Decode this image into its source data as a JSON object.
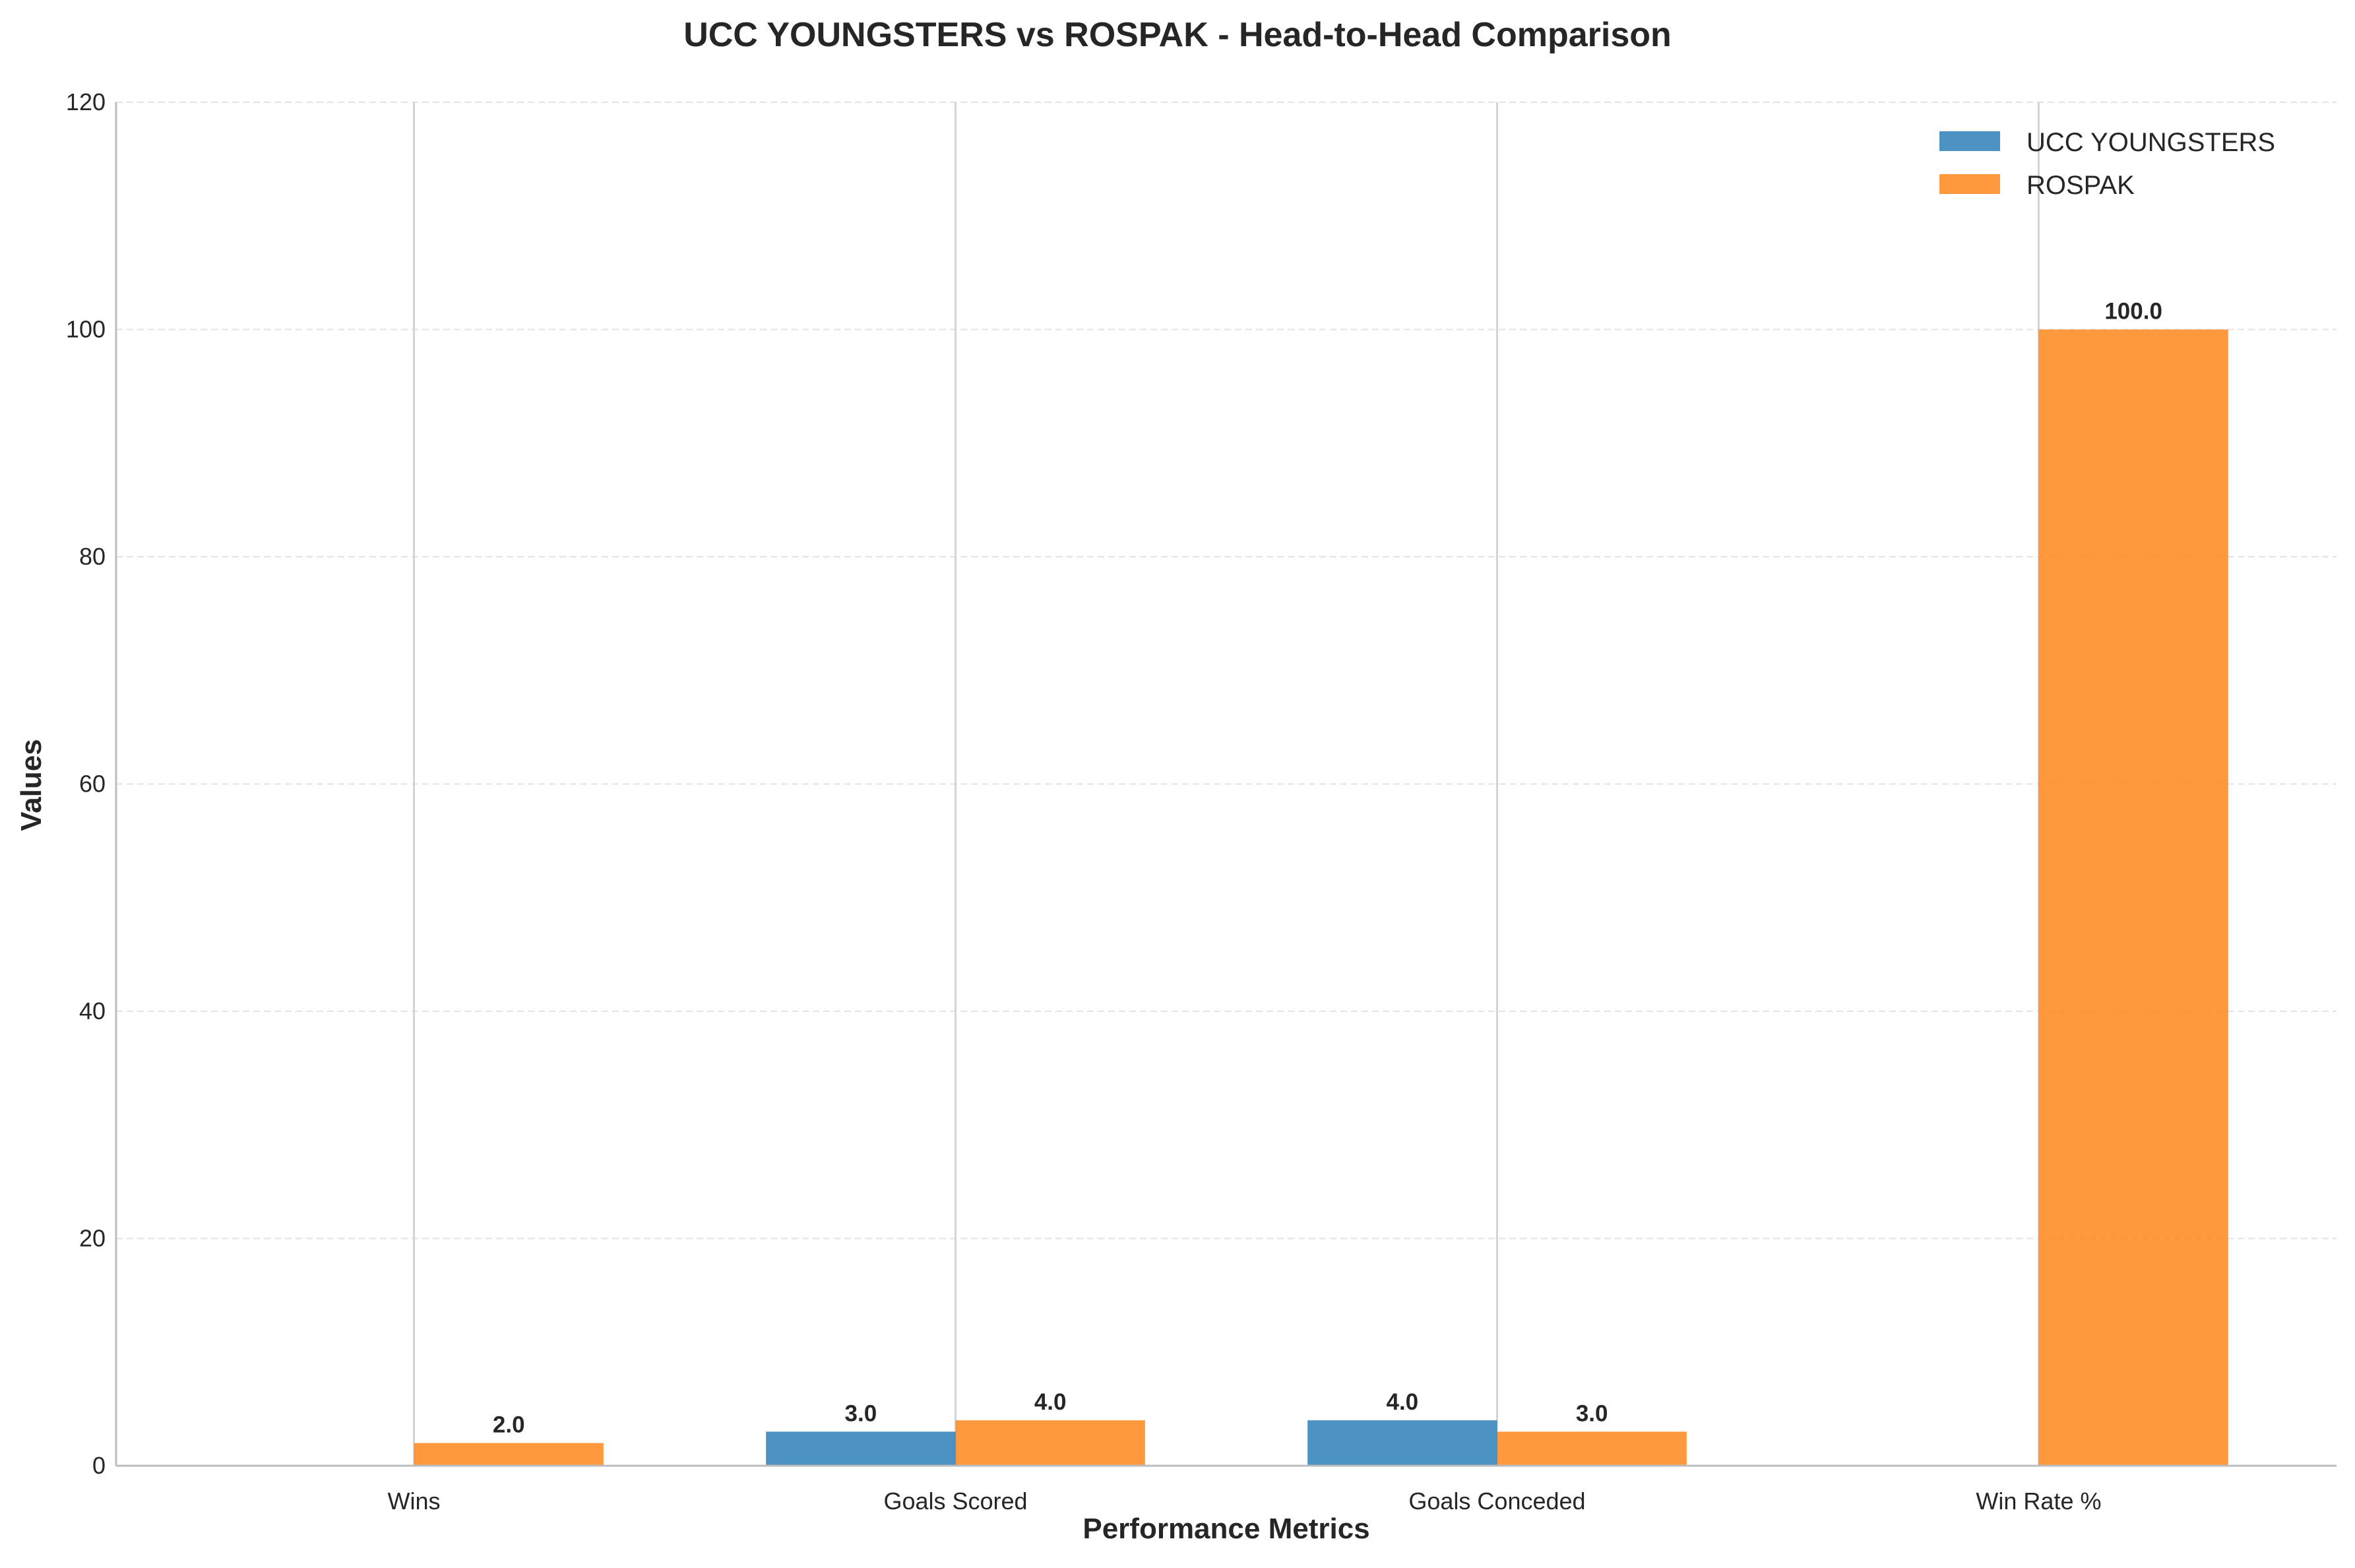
{
  "chart_data": {
    "type": "bar",
    "title": "UCC YOUNGSTERS vs ROSPAK - Head-to-Head Comparison",
    "xlabel": "Performance Metrics",
    "ylabel": "Values",
    "categories": [
      "Wins",
      "Goals Scored",
      "Goals Conceded",
      "Win Rate %"
    ],
    "series": [
      {
        "name": "UCC YOUNGSTERS",
        "color": "#1f77b4",
        "values": [
          0,
          3,
          4,
          0
        ],
        "labels": [
          "",
          "3.0",
          "4.0",
          ""
        ]
      },
      {
        "name": "ROSPAK",
        "color": "#ff7f0e",
        "values": [
          2,
          4,
          3,
          100
        ],
        "labels": [
          "2.0",
          "4.0",
          "3.0",
          "100.0"
        ]
      }
    ],
    "ylim": [
      0,
      120
    ],
    "yticks": [
      0,
      20,
      40,
      60,
      80,
      100,
      120
    ],
    "grid": {
      "y": true,
      "y_style": "dashed",
      "x": true,
      "x_style": "solid"
    },
    "legend_position": "top-right"
  }
}
